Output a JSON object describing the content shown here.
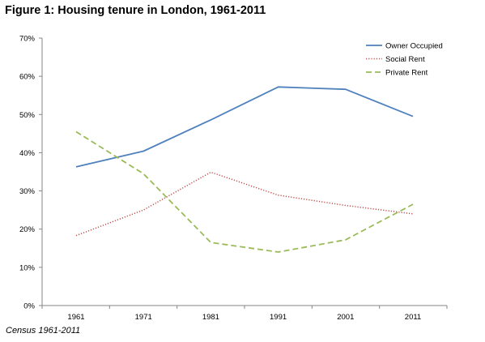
{
  "figure": {
    "title": "Figure 1: Housing tenure in London, 1961-2011",
    "source": "Census 1961-2011"
  },
  "chart_data": {
    "type": "line",
    "x": [
      "1961",
      "1971",
      "1981",
      "1991",
      "2001",
      "2011"
    ],
    "yticks": [
      "0%",
      "10%",
      "20%",
      "30%",
      "40%",
      "50%",
      "60%",
      "70%"
    ],
    "ylim": [
      0,
      70
    ],
    "grid": false,
    "legend_position": "top-right",
    "series": [
      {
        "name": "Owner Occupied",
        "values": [
          36.3,
          40.4,
          48.6,
          57.2,
          56.6,
          49.5
        ],
        "color": "#4f81bd",
        "style": "solid"
      },
      {
        "name": "Social Rent",
        "values": [
          18.3,
          25.0,
          34.9,
          28.9,
          26.2,
          24.0
        ],
        "color": "#c0504d",
        "style": "dotted"
      },
      {
        "name": "Private Rent",
        "values": [
          45.5,
          34.5,
          16.5,
          14.0,
          17.2,
          26.5
        ],
        "color": "#9bbb59",
        "style": "dashed"
      }
    ]
  }
}
